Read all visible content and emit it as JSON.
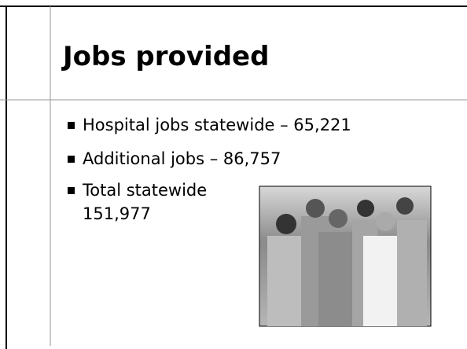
{
  "title": "Jobs provided",
  "bullets": [
    {
      "lines": [
        "Hospital jobs statewide – 65,221"
      ]
    },
    {
      "lines": [
        "Additional jobs – 86,757"
      ]
    },
    {
      "lines": [
        "Total statewide",
        "151,977"
      ]
    }
  ]
}
